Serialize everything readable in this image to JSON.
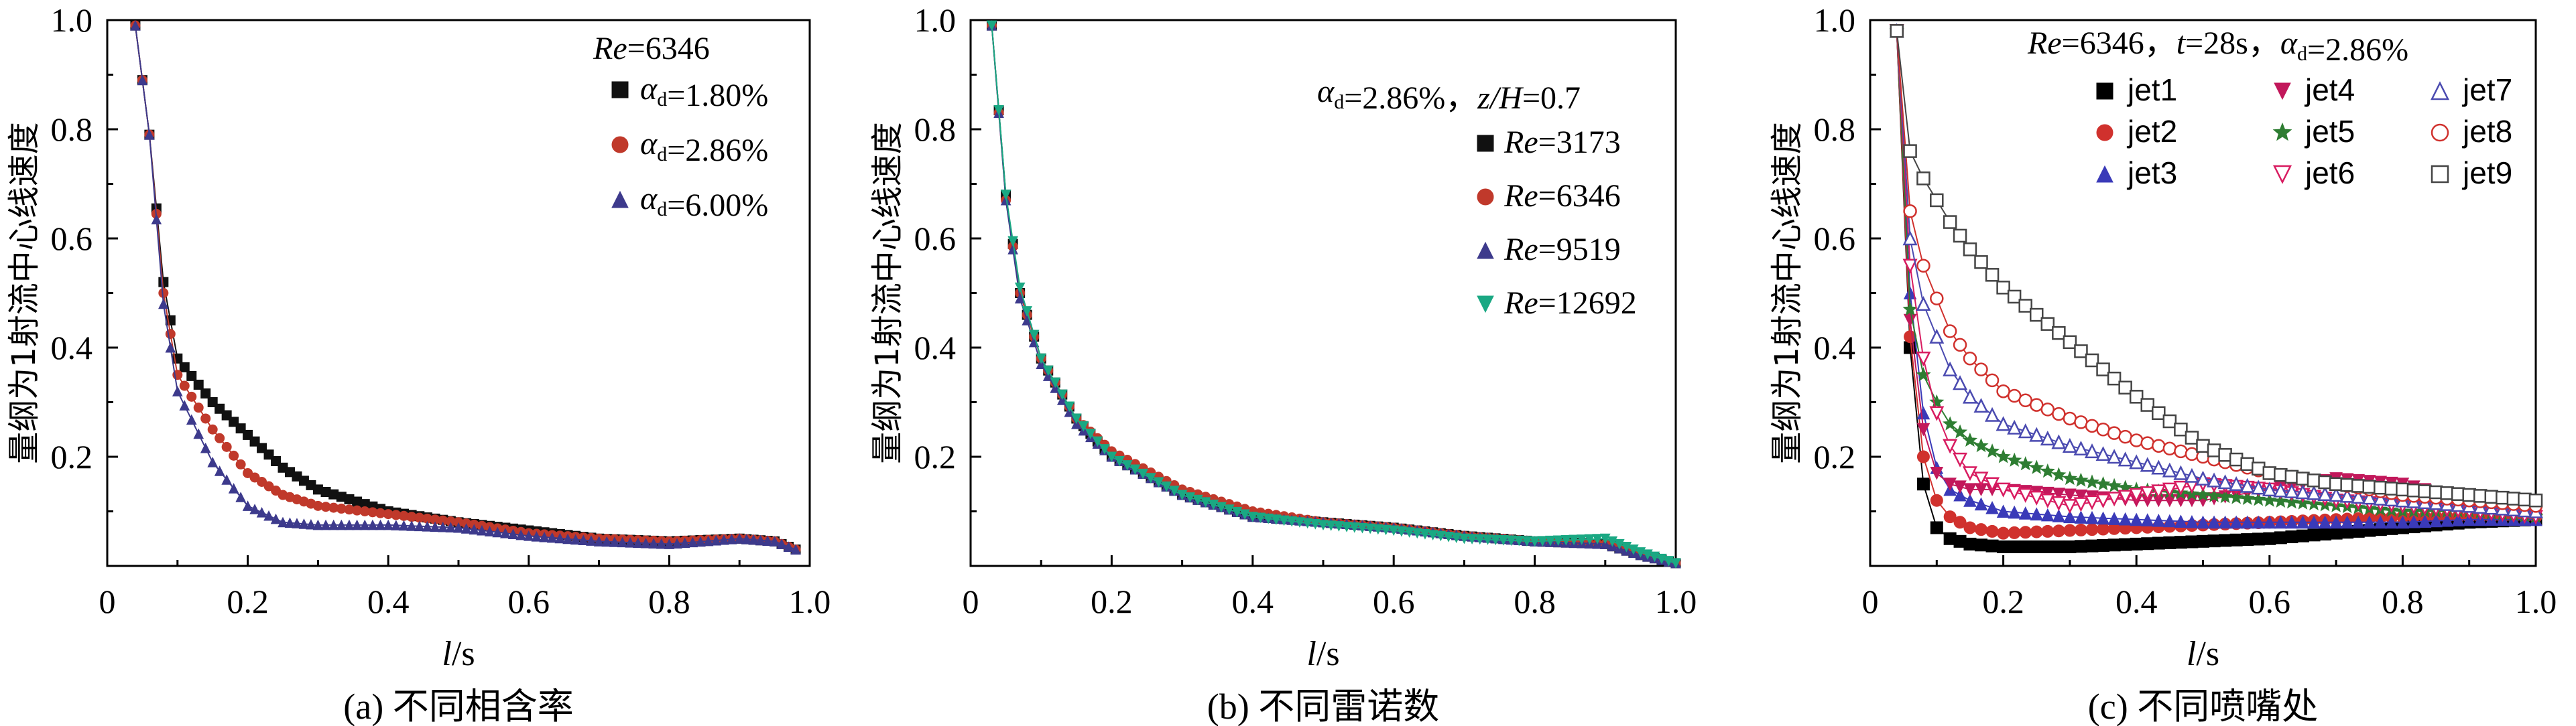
{
  "chart_data": [
    {
      "type": "line",
      "panel": "a",
      "caption": "(a) 不同相含率",
      "xlabel": "l/s",
      "ylabel": "量纲为1射流中心线速度",
      "xlim": [
        0,
        1.0
      ],
      "ylim": [
        0,
        1.0
      ],
      "xticks": [
        "0",
        "0.2",
        "0.4",
        "0.6",
        "0.8",
        "1.0"
      ],
      "yticks": [
        "0.2",
        "0.4",
        "0.6",
        "0.8",
        "1.0"
      ],
      "legend_title": "Re=6346",
      "legend_position": "top-right",
      "series": [
        {
          "name": "αd=1.80%",
          "color": "#111111",
          "marker": "square",
          "x": [
            0.04,
            0.06,
            0.08,
            0.1,
            0.15,
            0.2,
            0.25,
            0.3,
            0.4,
            0.5,
            0.6,
            0.7,
            0.8,
            0.9,
            0.95,
            0.98
          ],
          "y": [
            0.99,
            0.79,
            0.52,
            0.38,
            0.3,
            0.24,
            0.18,
            0.14,
            0.1,
            0.08,
            0.065,
            0.05,
            0.045,
            0.05,
            0.045,
            0.03
          ]
        },
        {
          "name": "αd=2.86%",
          "color": "#c0392b",
          "marker": "circle",
          "x": [
            0.04,
            0.06,
            0.08,
            0.1,
            0.15,
            0.2,
            0.25,
            0.3,
            0.4,
            0.5,
            0.6,
            0.7,
            0.8,
            0.9,
            0.95,
            0.98
          ],
          "y": [
            0.99,
            0.79,
            0.5,
            0.35,
            0.25,
            0.17,
            0.13,
            0.11,
            0.095,
            0.08,
            0.06,
            0.05,
            0.045,
            0.05,
            0.045,
            0.03
          ]
        },
        {
          "name": "αd=6.00%",
          "color": "#3d3a8c",
          "marker": "triangle",
          "x": [
            0.04,
            0.06,
            0.08,
            0.1,
            0.15,
            0.2,
            0.25,
            0.3,
            0.4,
            0.5,
            0.6,
            0.7,
            0.8,
            0.9,
            0.95,
            0.98
          ],
          "y": [
            0.99,
            0.79,
            0.48,
            0.32,
            0.19,
            0.11,
            0.08,
            0.075,
            0.075,
            0.07,
            0.055,
            0.045,
            0.04,
            0.05,
            0.045,
            0.03
          ]
        }
      ]
    },
    {
      "type": "line",
      "panel": "b",
      "caption": "(b) 不同雷诺数",
      "xlabel": "l/s",
      "ylabel": "量纲为1射流中心线速度",
      "xlim": [
        0,
        1.0
      ],
      "ylim": [
        0,
        1.0
      ],
      "xticks": [
        "0",
        "0.2",
        "0.4",
        "0.6",
        "0.8",
        "1.0"
      ],
      "yticks": [
        "0.2",
        "0.4",
        "0.6",
        "0.8",
        "1.0"
      ],
      "legend_title": "αd=2.86%，z/H=0.7",
      "legend_position": "right",
      "series": [
        {
          "name": "Re=3173",
          "color": "#111111",
          "marker": "square",
          "x": [
            0.03,
            0.05,
            0.07,
            0.1,
            0.15,
            0.2,
            0.3,
            0.4,
            0.5,
            0.6,
            0.7,
            0.8,
            0.9,
            0.95,
            1.0
          ],
          "y": [
            0.99,
            0.68,
            0.5,
            0.38,
            0.27,
            0.2,
            0.13,
            0.09,
            0.08,
            0.07,
            0.055,
            0.045,
            0.04,
            0.02,
            0.005
          ]
        },
        {
          "name": "Re=6346",
          "color": "#c0392b",
          "marker": "circle",
          "x": [
            0.03,
            0.05,
            0.07,
            0.1,
            0.15,
            0.2,
            0.3,
            0.4,
            0.5,
            0.6,
            0.7,
            0.8,
            0.9,
            0.95,
            1.0
          ],
          "y": [
            0.99,
            0.67,
            0.5,
            0.38,
            0.27,
            0.21,
            0.14,
            0.1,
            0.08,
            0.07,
            0.055,
            0.045,
            0.04,
            0.02,
            0.005
          ]
        },
        {
          "name": "Re=9519",
          "color": "#3d3a8c",
          "marker": "triangle",
          "x": [
            0.03,
            0.05,
            0.07,
            0.1,
            0.15,
            0.2,
            0.3,
            0.4,
            0.5,
            0.6,
            0.7,
            0.8,
            0.9,
            0.95,
            1.0
          ],
          "y": [
            0.99,
            0.67,
            0.49,
            0.37,
            0.26,
            0.2,
            0.13,
            0.09,
            0.08,
            0.07,
            0.055,
            0.045,
            0.04,
            0.02,
            0.005
          ]
        },
        {
          "name": "Re=12692",
          "color": "#1aa883",
          "marker": "triangle-down",
          "x": [
            0.03,
            0.05,
            0.07,
            0.1,
            0.15,
            0.2,
            0.3,
            0.4,
            0.5,
            0.6,
            0.7,
            0.8,
            0.9,
            0.95,
            1.0
          ],
          "y": [
            0.99,
            0.68,
            0.51,
            0.38,
            0.27,
            0.2,
            0.13,
            0.09,
            0.075,
            0.065,
            0.05,
            0.045,
            0.05,
            0.025,
            0.005
          ]
        }
      ]
    },
    {
      "type": "line",
      "panel": "c",
      "caption": "(c) 不同喷嘴处",
      "xlabel": "l/s",
      "ylabel": "量纲为1射流中心线速度",
      "xlim": [
        0,
        1.0
      ],
      "ylim": [
        0,
        1.0
      ],
      "xticks": [
        "0",
        "0.2",
        "0.4",
        "0.6",
        "0.8",
        "1.0"
      ],
      "yticks": [
        "0.2",
        "0.4",
        "0.6",
        "0.8",
        "1.0"
      ],
      "legend_title": "Re=6346，t=28s，αd=2.86%",
      "legend_position": "top",
      "series": [
        {
          "name": "jet1",
          "color": "#000000",
          "marker": "square",
          "x": [
            0.04,
            0.06,
            0.08,
            0.1,
            0.12,
            0.15,
            0.2,
            0.3,
            0.4,
            0.5,
            0.6,
            0.7,
            0.8,
            0.9,
            1.0
          ],
          "y": [
            0.98,
            0.4,
            0.15,
            0.07,
            0.05,
            0.04,
            0.035,
            0.035,
            0.04,
            0.045,
            0.05,
            0.06,
            0.07,
            0.08,
            0.085
          ]
        },
        {
          "name": "jet2",
          "color": "#d0312d",
          "marker": "circle",
          "x": [
            0.04,
            0.06,
            0.08,
            0.1,
            0.12,
            0.15,
            0.2,
            0.3,
            0.4,
            0.5,
            0.6,
            0.7,
            0.8,
            0.9,
            1.0
          ],
          "y": [
            0.98,
            0.42,
            0.2,
            0.12,
            0.09,
            0.07,
            0.06,
            0.065,
            0.07,
            0.075,
            0.08,
            0.085,
            0.09,
            0.09,
            0.09
          ]
        },
        {
          "name": "jet3",
          "color": "#3a3ab8",
          "marker": "triangle",
          "x": [
            0.04,
            0.06,
            0.08,
            0.1,
            0.12,
            0.15,
            0.2,
            0.3,
            0.4,
            0.5,
            0.6,
            0.7,
            0.8,
            0.9,
            1.0
          ],
          "y": [
            0.98,
            0.5,
            0.28,
            0.18,
            0.14,
            0.12,
            0.1,
            0.09,
            0.085,
            0.08,
            0.08,
            0.08,
            0.08,
            0.085,
            0.085
          ]
        },
        {
          "name": "jet4",
          "color": "#c2185b",
          "marker": "triangle-down",
          "x": [
            0.04,
            0.06,
            0.08,
            0.1,
            0.12,
            0.15,
            0.2,
            0.3,
            0.4,
            0.5,
            0.6,
            0.7,
            0.8,
            0.9,
            1.0
          ],
          "y": [
            0.98,
            0.45,
            0.25,
            0.17,
            0.15,
            0.14,
            0.14,
            0.13,
            0.12,
            0.12,
            0.14,
            0.16,
            0.15,
            0.12,
            0.09
          ]
        },
        {
          "name": "jet5",
          "color": "#2e7d32",
          "marker": "star",
          "x": [
            0.04,
            0.06,
            0.08,
            0.1,
            0.12,
            0.15,
            0.2,
            0.3,
            0.4,
            0.5,
            0.6,
            0.7,
            0.8,
            0.9,
            1.0
          ],
          "y": [
            0.98,
            0.47,
            0.35,
            0.3,
            0.26,
            0.23,
            0.2,
            0.16,
            0.14,
            0.13,
            0.12,
            0.11,
            0.1,
            0.1,
            0.09
          ]
        },
        {
          "name": "jet6",
          "color": "#d81b60",
          "marker": "triangle-down-open",
          "x": [
            0.04,
            0.06,
            0.08,
            0.1,
            0.12,
            0.15,
            0.2,
            0.3,
            0.4,
            0.5,
            0.6,
            0.7,
            0.8,
            0.9,
            1.0
          ],
          "y": [
            0.98,
            0.55,
            0.38,
            0.28,
            0.22,
            0.17,
            0.14,
            0.11,
            0.13,
            0.15,
            0.14,
            0.12,
            0.11,
            0.1,
            0.09
          ]
        },
        {
          "name": "jet7",
          "color": "#4a4ab0",
          "marker": "triangle-open",
          "x": [
            0.04,
            0.06,
            0.08,
            0.1,
            0.12,
            0.15,
            0.2,
            0.3,
            0.4,
            0.5,
            0.6,
            0.7,
            0.8,
            0.9,
            1.0
          ],
          "y": [
            0.98,
            0.6,
            0.48,
            0.42,
            0.36,
            0.31,
            0.26,
            0.22,
            0.19,
            0.16,
            0.14,
            0.13,
            0.12,
            0.11,
            0.1
          ]
        },
        {
          "name": "jet8",
          "color": "#d0312d",
          "marker": "circle-open",
          "x": [
            0.04,
            0.06,
            0.08,
            0.1,
            0.12,
            0.15,
            0.2,
            0.3,
            0.4,
            0.5,
            0.6,
            0.7,
            0.8,
            0.9,
            1.0
          ],
          "y": [
            0.98,
            0.65,
            0.55,
            0.49,
            0.43,
            0.38,
            0.32,
            0.27,
            0.23,
            0.2,
            0.17,
            0.15,
            0.13,
            0.12,
            0.11
          ]
        },
        {
          "name": "jet9",
          "color": "#444444",
          "marker": "square-open",
          "x": [
            0.04,
            0.06,
            0.08,
            0.1,
            0.12,
            0.15,
            0.2,
            0.3,
            0.4,
            0.5,
            0.6,
            0.7,
            0.8,
            0.9,
            1.0
          ],
          "y": [
            0.98,
            0.76,
            0.71,
            0.67,
            0.63,
            0.58,
            0.51,
            0.41,
            0.31,
            0.22,
            0.17,
            0.15,
            0.14,
            0.13,
            0.12
          ]
        }
      ]
    }
  ]
}
